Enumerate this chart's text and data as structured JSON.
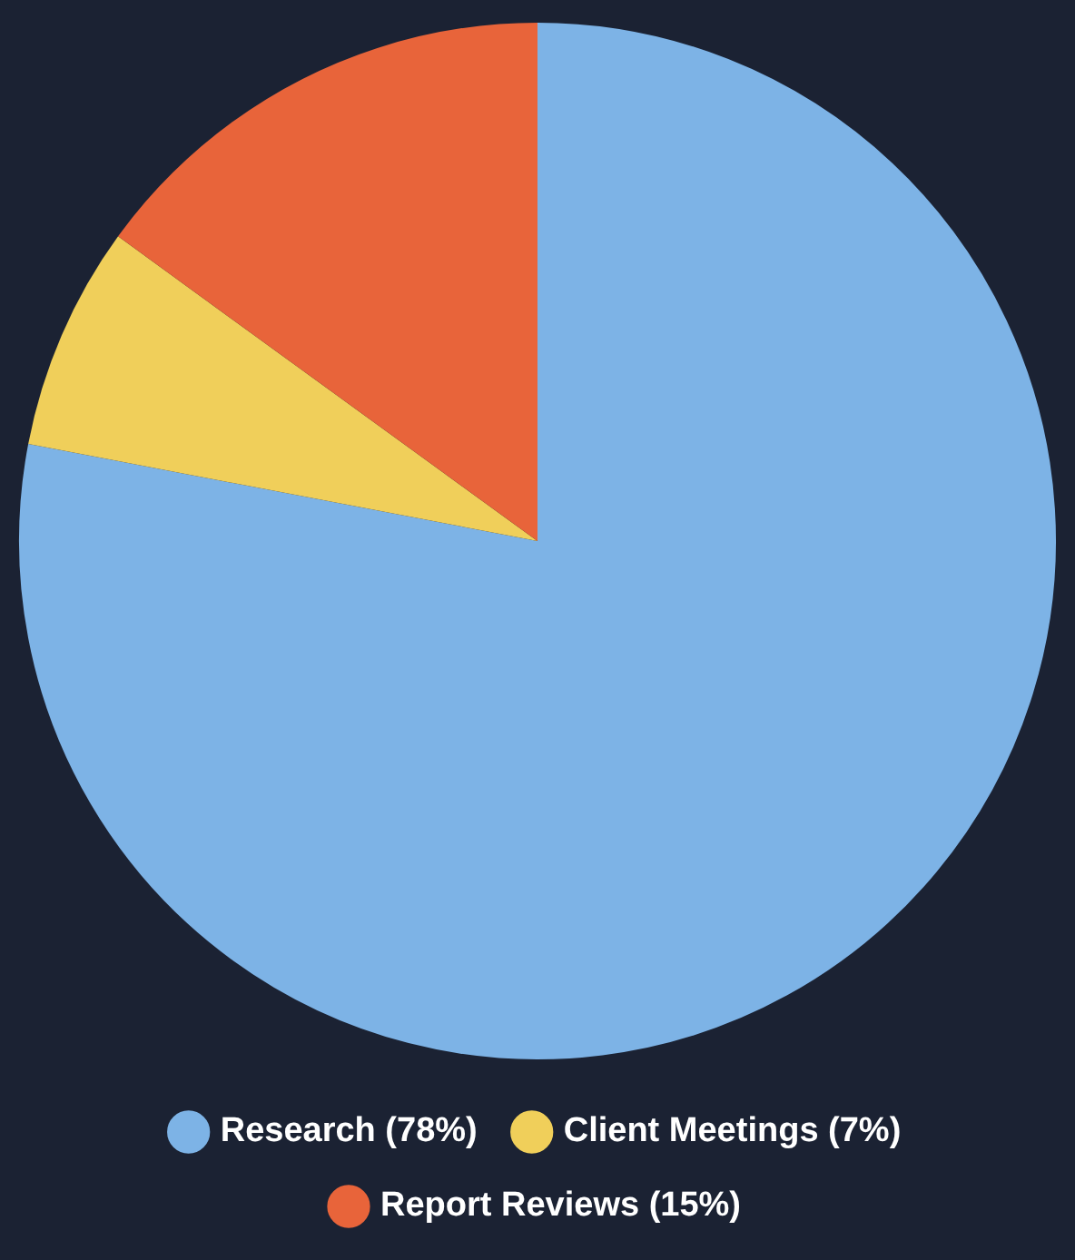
{
  "chart_data": {
    "type": "pie",
    "categories": [
      "Research (78%)",
      "Client Meetings (7%)",
      "Report Reviews (15%)"
    ],
    "values": [
      78,
      7,
      15
    ],
    "colors": [
      "#7db3e6",
      "#f0cf5a",
      "#e8643a"
    ],
    "legend": "bottom"
  }
}
